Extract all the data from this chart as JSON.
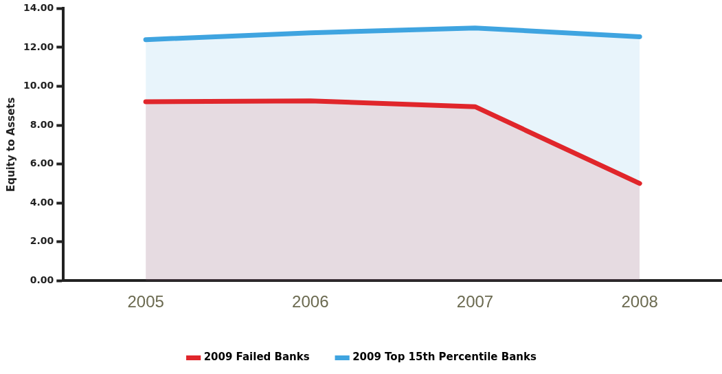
{
  "chart_data": {
    "type": "area",
    "ylabel": "Equity to Assets",
    "categories": [
      "2005",
      "2006",
      "2007",
      "2008"
    ],
    "series": [
      {
        "name": "2009 Failed Banks",
        "color": "#e0262b",
        "values": [
          9.2,
          9.25,
          8.95,
          5.0
        ]
      },
      {
        "name": "2009 Top 15th Percentile Banks",
        "color": "#3fa4e0",
        "values": [
          12.4,
          12.75,
          13.0,
          12.55
        ]
      }
    ],
    "ylim": [
      0,
      14
    ],
    "yticks": [
      {
        "value": 0,
        "label": "0.00"
      },
      {
        "value": 2,
        "label": "2.00"
      },
      {
        "value": 4,
        "label": "4.00"
      },
      {
        "value": 6,
        "label": "6.00"
      },
      {
        "value": 8,
        "label": "8.00"
      },
      {
        "value": 10,
        "label": "10.00"
      },
      {
        "value": 12,
        "label": "12.00"
      },
      {
        "value": 14,
        "label": "14.00"
      }
    ],
    "grid": false,
    "legend": "bottom",
    "marker": "none",
    "line_style": "solid"
  }
}
